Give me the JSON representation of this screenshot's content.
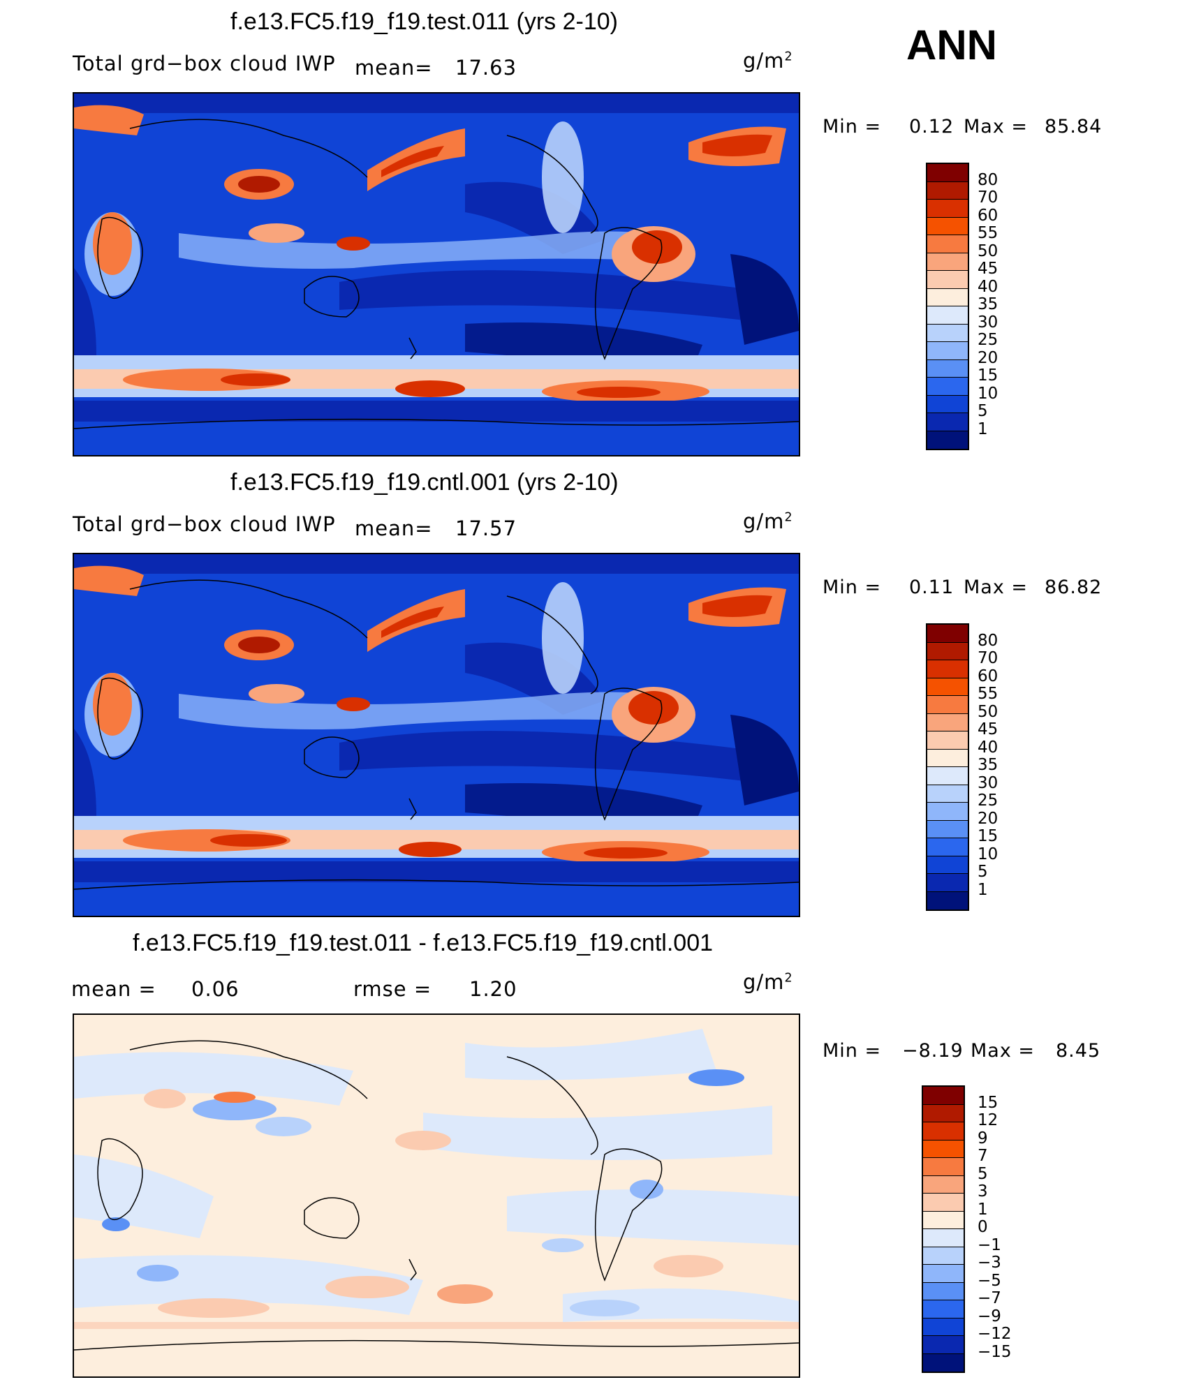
{
  "season": "ANN",
  "units_base": "g/m",
  "units_exp": "2",
  "panel1": {
    "title": "f.e13.FC5.f19_f19.test.011 (yrs 2-10)",
    "variable": "Total grd−box cloud IWP",
    "mean_label": "mean=",
    "mean": "17.63",
    "min_label": "Min =",
    "min": "0.12",
    "max_label": "Max =",
    "max": "85.84"
  },
  "panel2": {
    "title": "f.e13.FC5.f19_f19.cntl.001 (yrs 2-10)",
    "variable": "Total grd−box cloud IWP",
    "mean_label": "mean=",
    "mean": "17.57",
    "min_label": "Min =",
    "min": "0.11",
    "max_label": "Max =",
    "max": "86.82"
  },
  "panel3": {
    "title": "f.e13.FC5.f19_f19.test.011 - f.e13.FC5.f19_f19.cntl.001",
    "mean_label": "mean =",
    "mean": "0.06",
    "rmse_label": "rmse =",
    "rmse": "1.20",
    "min_label": "Min =",
    "min": "−8.19",
    "max_label": "Max =",
    "max": "8.45"
  },
  "colorbar_abs": {
    "levels": [
      "80",
      "70",
      "60",
      "55",
      "50",
      "45",
      "40",
      "35",
      "30",
      "25",
      "20",
      "15",
      "10",
      "5",
      "1"
    ],
    "colors": [
      "#7f0000",
      "#b01a00",
      "#d93000",
      "#f55200",
      "#f77a40",
      "#f9a57c",
      "#fbcbb0",
      "#fdeedd",
      "#dde9fb",
      "#b8d2fb",
      "#8fb6fa",
      "#5a90f5",
      "#2b67ee",
      "#1044d6",
      "#0a28b0",
      "#00127a"
    ]
  },
  "colorbar_diff": {
    "levels": [
      "15",
      "12",
      "9",
      "7",
      "5",
      "3",
      "1",
      "0",
      "−1",
      "−3",
      "−5",
      "−7",
      "−9",
      "−12",
      "−15"
    ],
    "colors": [
      "#7f0000",
      "#b01a00",
      "#d93000",
      "#f55200",
      "#f77a40",
      "#f9a57c",
      "#fbcbb0",
      "#fdeedd",
      "#dde9fb",
      "#b8d2fb",
      "#8fb6fa",
      "#5a90f5",
      "#2b67ee",
      "#1044d6",
      "#0a28b0",
      "#00127a"
    ]
  }
}
